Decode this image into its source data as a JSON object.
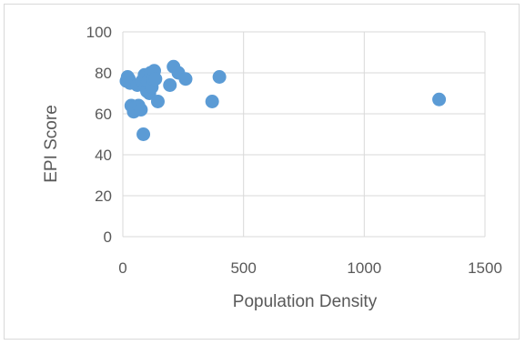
{
  "chart_data": {
    "type": "scatter",
    "title": "",
    "xlabel": "Population Density",
    "ylabel": "EPI Score",
    "xlim": [
      0,
      1500
    ],
    "ylim": [
      0,
      100
    ],
    "xticks": [
      0,
      500,
      1000,
      1500
    ],
    "yticks": [
      0,
      20,
      40,
      60,
      80,
      100
    ],
    "x_tick_labels": [
      "0",
      "500",
      "1000",
      "1500"
    ],
    "y_tick_labels": [
      "0",
      "20",
      "40",
      "60",
      "80",
      "100"
    ],
    "grid": "major gridlines on both axes",
    "legend": "none",
    "marker_color": "#5b9bd5",
    "gridline_color": "#d9d9d9",
    "points": [
      {
        "x": 15,
        "y": 76
      },
      {
        "x": 20,
        "y": 78
      },
      {
        "x": 25,
        "y": 77
      },
      {
        "x": 30,
        "y": 75
      },
      {
        "x": 35,
        "y": 64
      },
      {
        "x": 45,
        "y": 61
      },
      {
        "x": 50,
        "y": 63
      },
      {
        "x": 60,
        "y": 74
      },
      {
        "x": 65,
        "y": 64
      },
      {
        "x": 75,
        "y": 62
      },
      {
        "x": 80,
        "y": 76
      },
      {
        "x": 85,
        "y": 50
      },
      {
        "x": 90,
        "y": 79
      },
      {
        "x": 95,
        "y": 73
      },
      {
        "x": 100,
        "y": 71
      },
      {
        "x": 105,
        "y": 76
      },
      {
        "x": 110,
        "y": 70
      },
      {
        "x": 115,
        "y": 80
      },
      {
        "x": 120,
        "y": 73
      },
      {
        "x": 125,
        "y": 77
      },
      {
        "x": 130,
        "y": 81
      },
      {
        "x": 135,
        "y": 77
      },
      {
        "x": 145,
        "y": 66
      },
      {
        "x": 195,
        "y": 74
      },
      {
        "x": 210,
        "y": 83
      },
      {
        "x": 230,
        "y": 80
      },
      {
        "x": 260,
        "y": 77
      },
      {
        "x": 370,
        "y": 66
      },
      {
        "x": 400,
        "y": 78
      },
      {
        "x": 1310,
        "y": 67
      }
    ]
  }
}
